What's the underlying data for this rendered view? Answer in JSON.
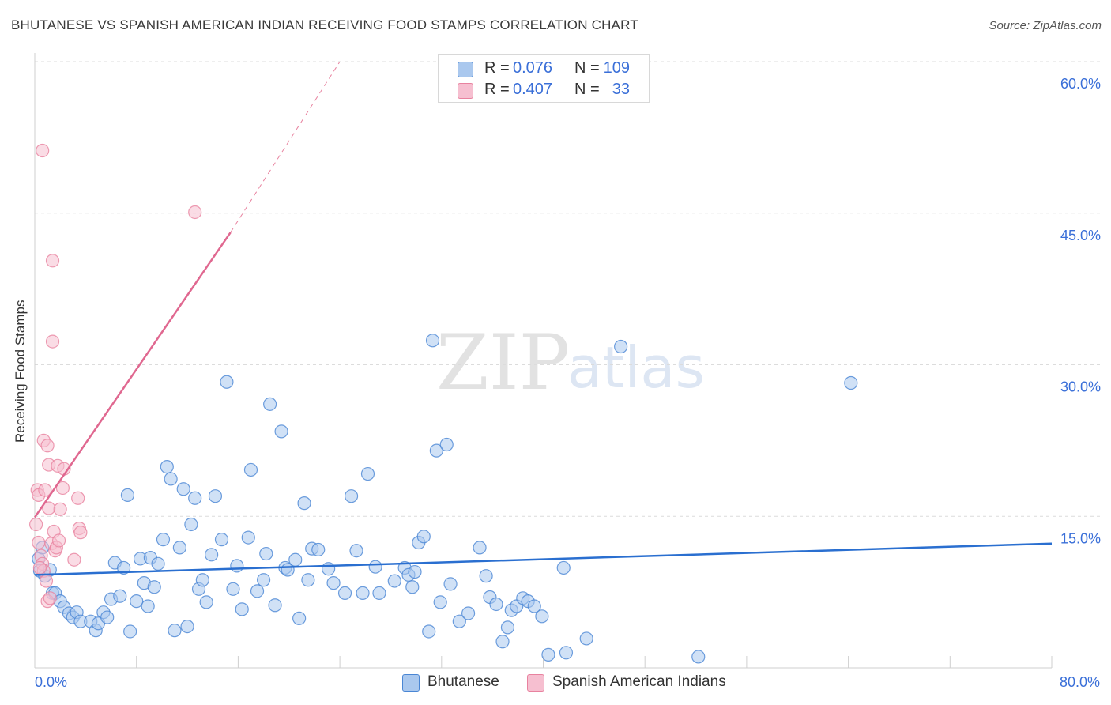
{
  "chart_data": {
    "type": "scatter",
    "title": "BHUTANESE VS SPANISH AMERICAN INDIAN RECEIVING FOOD STAMPS CORRELATION CHART",
    "source": "Source: ZipAtlas.com",
    "xlabel": "",
    "ylabel": "Receiving Food Stamps",
    "xlim": [
      0,
      80
    ],
    "ylim": [
      0,
      60
    ],
    "x_tick_labels": [
      "0.0%",
      "80.0%"
    ],
    "y_tick_values": [
      15,
      30,
      45,
      60
    ],
    "y_tick_labels": [
      "15.0%",
      "30.0%",
      "45.0%",
      "60.0%"
    ],
    "grid": true,
    "watermark": {
      "zip": "ZIP",
      "atlas": "atlas"
    },
    "legend": {
      "rows": [
        {
          "r_label": "R =",
          "r_value": "0.076",
          "n_label": "N =",
          "n_value": "109"
        },
        {
          "r_label": "R =",
          "r_value": "0.407",
          "n_label": "N =",
          "n_value": "33"
        }
      ]
    },
    "colors": {
      "blue_fill": "#aac8ee",
      "blue_stroke": "#4a86d4",
      "blue_line": "#2a6fd0",
      "pink_fill": "#f6bfd0",
      "pink_stroke": "#e8829f",
      "pink_line": "#e06890",
      "tick_text": "#3a6fd8"
    },
    "series": [
      {
        "name": "Bhutanese",
        "trend": {
          "x0": 0,
          "y0": 9.2,
          "x1": 80,
          "y1": 12.3
        },
        "points": [
          [
            0.3,
            10.8
          ],
          [
            0.4,
            9.6
          ],
          [
            0.6,
            11.9
          ],
          [
            0.8,
            9.1
          ],
          [
            1.2,
            9.7
          ],
          [
            1.4,
            7.4
          ],
          [
            1.6,
            7.4
          ],
          [
            2.0,
            6.6
          ],
          [
            2.3,
            6.0
          ],
          [
            2.7,
            5.4
          ],
          [
            3.0,
            5.0
          ],
          [
            3.3,
            5.5
          ],
          [
            3.6,
            4.6
          ],
          [
            4.4,
            4.6
          ],
          [
            4.8,
            3.7
          ],
          [
            5.0,
            4.4
          ],
          [
            5.4,
            5.5
          ],
          [
            5.7,
            5.0
          ],
          [
            6.0,
            6.8
          ],
          [
            6.3,
            10.4
          ],
          [
            6.7,
            7.1
          ],
          [
            7.0,
            9.9
          ],
          [
            7.3,
            17.1
          ],
          [
            7.5,
            3.6
          ],
          [
            8.0,
            6.6
          ],
          [
            8.3,
            10.8
          ],
          [
            8.6,
            8.4
          ],
          [
            8.9,
            6.1
          ],
          [
            9.1,
            10.9
          ],
          [
            9.4,
            8.0
          ],
          [
            9.7,
            10.3
          ],
          [
            10.1,
            12.7
          ],
          [
            10.4,
            19.9
          ],
          [
            10.7,
            18.7
          ],
          [
            11.0,
            3.7
          ],
          [
            11.4,
            11.9
          ],
          [
            11.7,
            17.7
          ],
          [
            12.0,
            4.1
          ],
          [
            12.3,
            14.2
          ],
          [
            12.6,
            16.8
          ],
          [
            12.9,
            7.8
          ],
          [
            13.2,
            8.7
          ],
          [
            13.5,
            6.5
          ],
          [
            13.9,
            11.2
          ],
          [
            14.2,
            17.0
          ],
          [
            14.7,
            12.7
          ],
          [
            15.1,
            28.3
          ],
          [
            15.6,
            7.8
          ],
          [
            15.9,
            10.1
          ],
          [
            16.3,
            5.8
          ],
          [
            16.8,
            12.9
          ],
          [
            17.0,
            19.6
          ],
          [
            17.5,
            7.6
          ],
          [
            18.0,
            8.7
          ],
          [
            18.2,
            11.3
          ],
          [
            18.5,
            26.1
          ],
          [
            18.9,
            6.2
          ],
          [
            19.4,
            23.4
          ],
          [
            19.7,
            9.9
          ],
          [
            19.9,
            9.7
          ],
          [
            20.5,
            10.7
          ],
          [
            20.8,
            4.9
          ],
          [
            21.2,
            16.3
          ],
          [
            21.5,
            8.7
          ],
          [
            21.8,
            11.8
          ],
          [
            22.3,
            11.7
          ],
          [
            23.1,
            9.8
          ],
          [
            23.5,
            8.4
          ],
          [
            24.4,
            7.4
          ],
          [
            24.9,
            17.0
          ],
          [
            25.3,
            11.6
          ],
          [
            25.8,
            7.4
          ],
          [
            26.2,
            19.2
          ],
          [
            26.8,
            10.0
          ],
          [
            27.1,
            7.4
          ],
          [
            28.3,
            8.6
          ],
          [
            29.1,
            9.9
          ],
          [
            29.4,
            9.2
          ],
          [
            29.7,
            8.0
          ],
          [
            29.9,
            9.5
          ],
          [
            30.2,
            12.4
          ],
          [
            30.6,
            13.0
          ],
          [
            31.0,
            3.6
          ],
          [
            31.3,
            32.4
          ],
          [
            31.6,
            21.5
          ],
          [
            31.9,
            6.5
          ],
          [
            32.4,
            22.1
          ],
          [
            32.7,
            8.3
          ],
          [
            33.4,
            4.6
          ],
          [
            34.1,
            5.4
          ],
          [
            35.0,
            11.9
          ],
          [
            35.5,
            9.1
          ],
          [
            35.8,
            7.0
          ],
          [
            36.3,
            6.3
          ],
          [
            36.8,
            2.6
          ],
          [
            37.2,
            4.0
          ],
          [
            37.5,
            5.7
          ],
          [
            37.9,
            6.1
          ],
          [
            38.4,
            6.9
          ],
          [
            38.8,
            6.6
          ],
          [
            39.3,
            6.1
          ],
          [
            39.9,
            5.1
          ],
          [
            40.4,
            1.3
          ],
          [
            41.6,
            9.9
          ],
          [
            41.8,
            1.5
          ],
          [
            43.4,
            2.9
          ],
          [
            46.1,
            31.8
          ],
          [
            52.2,
            1.1
          ],
          [
            64.2,
            28.2
          ]
        ]
      },
      {
        "name": "Spanish American Indians",
        "trend": {
          "x0": 0,
          "y0": 14.9,
          "x1": 15.4,
          "y1": 43.1
        },
        "trend_dashed": {
          "x0": 15.4,
          "y0": 43.1,
          "x1": 24.0,
          "y1": 60.0
        },
        "points": [
          [
            0.1,
            14.2
          ],
          [
            0.2,
            17.6
          ],
          [
            0.3,
            17.1
          ],
          [
            0.3,
            12.4
          ],
          [
            0.5,
            11.1
          ],
          [
            0.6,
            51.2
          ],
          [
            0.6,
            10.3
          ],
          [
            0.7,
            9.6
          ],
          [
            0.7,
            22.5
          ],
          [
            0.8,
            17.6
          ],
          [
            0.9,
            8.6
          ],
          [
            1.0,
            22.0
          ],
          [
            1.0,
            6.6
          ],
          [
            1.1,
            20.1
          ],
          [
            1.1,
            15.8
          ],
          [
            1.2,
            6.9
          ],
          [
            1.3,
            12.3
          ],
          [
            1.4,
            40.3
          ],
          [
            1.4,
            32.3
          ],
          [
            1.5,
            13.5
          ],
          [
            1.6,
            11.6
          ],
          [
            1.7,
            11.9
          ],
          [
            1.8,
            20.0
          ],
          [
            1.9,
            12.6
          ],
          [
            2.0,
            15.7
          ],
          [
            2.2,
            17.8
          ],
          [
            2.3,
            19.7
          ],
          [
            3.1,
            10.7
          ],
          [
            3.4,
            16.8
          ],
          [
            3.5,
            13.8
          ],
          [
            3.6,
            13.4
          ],
          [
            12.6,
            45.1
          ],
          [
            0.4,
            9.9
          ]
        ]
      }
    ]
  },
  "bottom_legend": [
    {
      "label": "Bhutanese"
    },
    {
      "label": "Spanish American Indians"
    }
  ]
}
